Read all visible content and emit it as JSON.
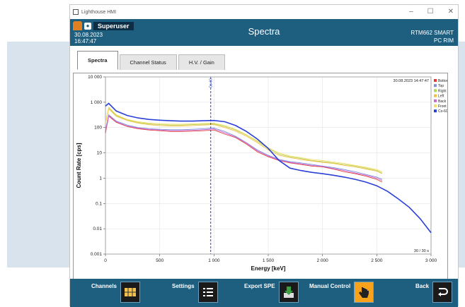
{
  "window": {
    "title": "Lighthouse HMI",
    "controls": [
      "–",
      "☐",
      "✕"
    ]
  },
  "header": {
    "username": "Superuser",
    "date": "30.08.2023",
    "time": "16:47:47",
    "title": "Spectra",
    "device_line1": "RTM662 SMART",
    "device_line2": "PC RIM"
  },
  "tabs": [
    {
      "label": "Spectra",
      "active": true
    },
    {
      "label": "Channel Status",
      "active": false
    },
    {
      "label": "H.V. / Gain",
      "active": false
    }
  ],
  "chart_data": {
    "type": "line",
    "xlabel": "Energy [keV]",
    "ylabel": "Count Rate [cps]",
    "xlim": [
      0,
      3000
    ],
    "ylim": [
      0.001,
      10000
    ],
    "yscale": "log",
    "xticks": [
      0,
      500,
      1000,
      1500,
      2000,
      2500,
      3000
    ],
    "xtick_labels": [
      "0",
      "500",
      "1 000",
      "1 500",
      "2 000",
      "2 500",
      "3 000"
    ],
    "yticks": [
      0.001,
      0.01,
      0.1,
      1,
      10,
      100,
      1000,
      10000
    ],
    "ytick_labels": [
      "0.001",
      "0.01",
      "0.1",
      "1",
      "10",
      "100",
      "1 000",
      "10 000"
    ],
    "timestamp": "30.08.2023 14:47:47",
    "measure_time": "30 / 30 s",
    "marker": {
      "label": "Co-60",
      "x": 970
    },
    "legend_position": "top-right",
    "grid": true,
    "series": [
      {
        "name": "Bottom",
        "color": "#e53a3a",
        "x": [
          0,
          30,
          100,
          200,
          300,
          400,
          500,
          600,
          700,
          800,
          900,
          1000,
          1100,
          1200,
          1300,
          1400,
          1500,
          1600,
          1700,
          1800,
          1900,
          2000,
          2100,
          2200,
          2300,
          2400,
          2500,
          2550
        ],
        "y": [
          60,
          280,
          160,
          110,
          90,
          80,
          75,
          70,
          70,
          72,
          75,
          80,
          55,
          40,
          22,
          11,
          7,
          5,
          4,
          3.5,
          3,
          2.8,
          2.3,
          1.8,
          1.5,
          1.2,
          0.9,
          0.7
        ]
      },
      {
        "name": "Top",
        "color": "#7f8fd8",
        "x": [
          0,
          30,
          100,
          200,
          300,
          400,
          500,
          600,
          700,
          800,
          900,
          1000,
          1100,
          1200,
          1300,
          1400,
          1500,
          1600,
          1700,
          1800,
          1900,
          2000,
          2100,
          2200,
          2300,
          2400,
          2500,
          2550
        ],
        "y": [
          80,
          320,
          180,
          125,
          100,
          90,
          85,
          82,
          82,
          85,
          90,
          95,
          70,
          45,
          25,
          13,
          8,
          5.5,
          4.5,
          4,
          3.5,
          3,
          2.6,
          2.2,
          1.8,
          1.4,
          1.1,
          0.9
        ]
      },
      {
        "name": "Right",
        "color": "#b6d35a",
        "x": [
          0,
          30,
          100,
          200,
          300,
          400,
          500,
          600,
          700,
          800,
          900,
          1000,
          1100,
          1200,
          1300,
          1400,
          1500,
          1600,
          1700,
          1800,
          1900,
          2000,
          2100,
          2200,
          2300,
          2400,
          2500,
          2550
        ],
        "y": [
          150,
          600,
          300,
          200,
          160,
          140,
          130,
          125,
          125,
          130,
          135,
          140,
          110,
          80,
          50,
          28,
          15,
          9,
          7,
          6,
          5,
          4.5,
          4,
          3.5,
          3,
          2.5,
          2,
          1.6
        ]
      },
      {
        "name": "Left",
        "color": "#f0c040",
        "x": [
          0,
          30,
          100,
          200,
          300,
          400,
          500,
          600,
          700,
          800,
          900,
          1000,
          1100,
          1200,
          1300,
          1400,
          1500,
          1600,
          1700,
          1800,
          1900,
          2000,
          2100,
          2200,
          2300,
          2400,
          2500,
          2550
        ],
        "y": [
          140,
          550,
          280,
          190,
          150,
          130,
          120,
          115,
          115,
          120,
          125,
          130,
          100,
          72,
          45,
          25,
          13,
          8,
          6.5,
          5.5,
          4.8,
          4.2,
          3.8,
          3.2,
          2.8,
          2.3,
          1.9,
          1.5
        ]
      },
      {
        "name": "Back",
        "color": "#c86ad2",
        "x": [
          0,
          30,
          100,
          200,
          300,
          400,
          500,
          600,
          700,
          800,
          900,
          1000,
          1100,
          1200,
          1300,
          1400,
          1500,
          1600,
          1700,
          1800,
          1900,
          2000,
          2100,
          2200,
          2300,
          2400,
          2500,
          2550
        ],
        "y": [
          70,
          300,
          170,
          115,
          95,
          85,
          80,
          76,
          76,
          78,
          82,
          88,
          62,
          42,
          24,
          12,
          7.5,
          5.2,
          4.2,
          3.7,
          3.2,
          2.9,
          2.4,
          2,
          1.6,
          1.3,
          1,
          0.8
        ]
      },
      {
        "name": "Front",
        "color": "#f5e06a",
        "x": [
          0,
          30,
          100,
          200,
          300,
          400,
          500,
          600,
          700,
          800,
          900,
          1000,
          1100,
          1200,
          1300,
          1400,
          1500,
          1600,
          1700,
          1800,
          1900,
          2000,
          2100,
          2200,
          2300,
          2400,
          2500,
          2550
        ],
        "y": [
          160,
          650,
          320,
          210,
          170,
          150,
          140,
          135,
          135,
          140,
          145,
          150,
          120,
          85,
          52,
          30,
          16,
          10,
          7.5,
          6.5,
          5.5,
          5,
          4.4,
          3.8,
          3.2,
          2.7,
          2.2,
          1.8
        ]
      },
      {
        "name": "Co-60",
        "color": "#2a3fd6",
        "x": [
          0,
          30,
          100,
          200,
          300,
          400,
          500,
          600,
          700,
          800,
          900,
          1000,
          1100,
          1200,
          1300,
          1400,
          1500,
          1600,
          1700,
          1800,
          1900,
          2000,
          2100,
          2200,
          2300,
          2400,
          2500,
          2600,
          2700,
          2800,
          2900,
          3000
        ],
        "y": [
          700,
          900,
          450,
          300,
          240,
          210,
          195,
          185,
          180,
          180,
          185,
          190,
          170,
          120,
          70,
          35,
          15,
          5,
          2.5,
          2,
          1.7,
          1.5,
          1.3,
          1.1,
          0.9,
          0.7,
          0.5,
          0.3,
          0.15,
          0.07,
          0.025,
          0.007
        ]
      }
    ]
  },
  "toolbar": [
    {
      "label": "Channels",
      "icon": "channels-icon"
    },
    {
      "label": "Settings",
      "icon": "settings-list-icon"
    },
    {
      "label": "Export SPE",
      "icon": "export-icon"
    },
    {
      "label": "Manual Control",
      "icon": "hand-touch-icon"
    },
    {
      "label": "Back",
      "icon": "back-arrow-icon"
    }
  ]
}
